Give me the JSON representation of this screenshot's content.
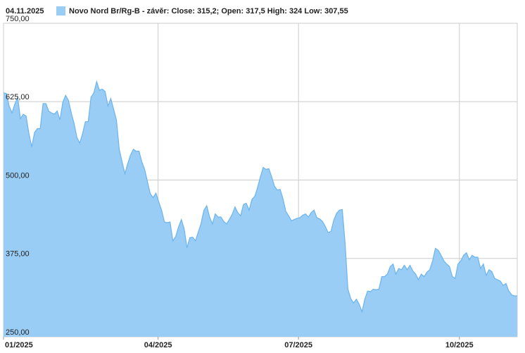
{
  "chart_data": {
    "type": "area",
    "date": "04.11.2025",
    "series": [
      {
        "name": "Novo Nord Br/Rg-B - závěr: Close: 315,2; Open: 317,5 High: 324 Low: 307,55",
        "color": "#99cdf6",
        "line_color": "#6cb4ec",
        "values": [
          639,
          638,
          618,
          607,
          621,
          632,
          598,
          605,
          602,
          574,
          553,
          576,
          582,
          582,
          622,
          622,
          610,
          607,
          605,
          610,
          596,
          624,
          635,
          627,
          607,
          590,
          568,
          559,
          574,
          593,
          593,
          632,
          639,
          657,
          643,
          645,
          641,
          618,
          630,
          613,
          596,
          549,
          529,
          510,
          526,
          540,
          549,
          546,
          546,
          529,
          517,
          497,
          478,
          472,
          479,
          465,
          452,
          433,
          432,
          433,
          403,
          410,
          425,
          437,
          422,
          392,
          408,
          409,
          403,
          417,
          431,
          452,
          459,
          441,
          430,
          446,
          441,
          441,
          434,
          430,
          437,
          445,
          457,
          448,
          443,
          461,
          463,
          452,
          469,
          474,
          488,
          505,
          520,
          517,
          518,
          505,
          490,
          484,
          485,
          470,
          450,
          443,
          435,
          437,
          439,
          440,
          444,
          446,
          441,
          448,
          452,
          440,
          438,
          434,
          426,
          416,
          418,
          436,
          447,
          452,
          453,
          400,
          326,
          311,
          304,
          310,
          302,
          290,
          310,
          323,
          322,
          326,
          325,
          326,
          346,
          346,
          350,
          362,
          366,
          350,
          359,
          357,
          364,
          357,
          364,
          355,
          350,
          341,
          350,
          346,
          353,
          357,
          371,
          391,
          388,
          380,
          371,
          366,
          362,
          346,
          343,
          366,
          371,
          380,
          384,
          373,
          380,
          377,
          377,
          359,
          366,
          348,
          357,
          354,
          343,
          341,
          339,
          332,
          335,
          323,
          317,
          315.2,
          315.2
        ]
      }
    ],
    "xlim": [
      0,
      182
    ],
    "xticks": [
      {
        "value": 0,
        "label": "01/2025"
      },
      {
        "value": 54.75,
        "label": "04/2025"
      },
      {
        "value": 104.5,
        "label": "07/2025"
      },
      {
        "value": 161.5,
        "label": "10/2025"
      }
    ],
    "ylim": [
      250,
      750
    ],
    "yticks": [
      {
        "value": 250,
        "label": "250,00"
      },
      {
        "value": 375,
        "label": "375,00"
      },
      {
        "value": 500,
        "label": "500,00"
      },
      {
        "value": 625,
        "label": "625,00"
      },
      {
        "value": 750,
        "label": "750,00"
      }
    ],
    "grid": true
  }
}
